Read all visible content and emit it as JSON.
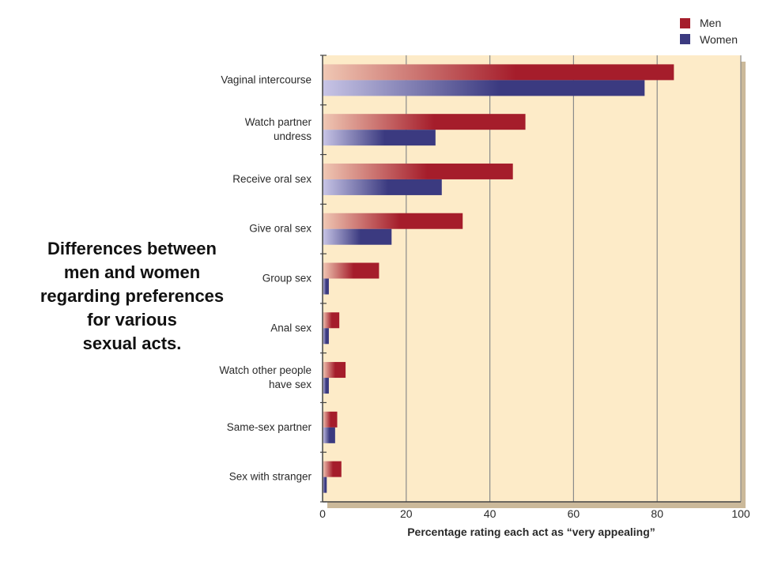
{
  "caption": {
    "lines": [
      "Differences between",
      "men and women",
      "regarding preferences",
      "for various",
      "sexual acts."
    ]
  },
  "chart_data": {
    "type": "bar",
    "orientation": "horizontal",
    "categories": [
      [
        "Vaginal intercourse"
      ],
      [
        "Watch partner",
        "undress"
      ],
      [
        "Receive oral sex"
      ],
      [
        "Give oral sex"
      ],
      [
        "Group sex"
      ],
      [
        "Anal sex"
      ],
      [
        "Watch other people",
        "have sex"
      ],
      [
        "Same-sex partner"
      ],
      [
        "Sex with stranger"
      ]
    ],
    "series": [
      {
        "name": "Men",
        "values": [
          84,
          48.5,
          45.5,
          33.5,
          13.5,
          4,
          5.5,
          3.5,
          4.5
        ],
        "color": "#a51d2b"
      },
      {
        "name": "Women",
        "values": [
          77,
          27,
          28.5,
          16.5,
          1.5,
          1.5,
          1.5,
          3,
          1
        ],
        "color": "#3b3a80"
      }
    ],
    "xlabel": "Percentage rating each act as “very appealing”",
    "xlim": [
      0,
      100
    ],
    "xticks": [
      0,
      20,
      40,
      60,
      80,
      100
    ],
    "grid": true,
    "legend_position": "top-right",
    "background_color": "#fdebc8"
  }
}
